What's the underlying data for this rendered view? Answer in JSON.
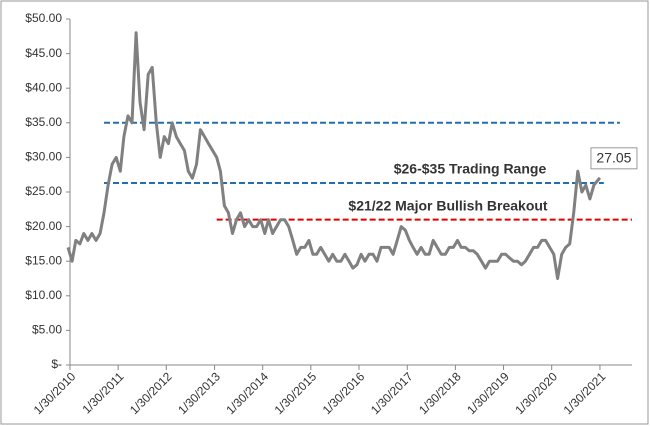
{
  "chart_data": {
    "type": "line",
    "x": [
      "2010-01-15",
      "2010-02-15",
      "2010-03-15",
      "2010-04-15",
      "2010-05-15",
      "2010-06-15",
      "2010-07-15",
      "2010-08-15",
      "2010-09-15",
      "2010-10-15",
      "2010-11-15",
      "2010-12-15",
      "2011-01-15",
      "2011-02-15",
      "2011-03-15",
      "2011-04-15",
      "2011-05-15",
      "2011-06-15",
      "2011-07-15",
      "2011-08-15",
      "2011-09-15",
      "2011-10-15",
      "2011-11-15",
      "2011-12-15",
      "2012-01-15",
      "2012-02-15",
      "2012-03-15",
      "2012-04-15",
      "2012-05-15",
      "2012-06-15",
      "2012-07-15",
      "2012-08-15",
      "2012-09-15",
      "2012-10-15",
      "2012-11-15",
      "2012-12-15",
      "2013-01-15",
      "2013-02-15",
      "2013-03-15",
      "2013-04-15",
      "2013-05-15",
      "2013-06-15",
      "2013-07-15",
      "2013-08-15",
      "2013-09-15",
      "2013-10-15",
      "2013-11-15",
      "2013-12-15",
      "2014-01-15",
      "2014-02-15",
      "2014-03-15",
      "2014-04-15",
      "2014-05-15",
      "2014-06-15",
      "2014-07-15",
      "2014-08-15",
      "2014-09-15",
      "2014-10-15",
      "2014-11-15",
      "2014-12-15",
      "2015-01-15",
      "2015-02-15",
      "2015-03-15",
      "2015-04-15",
      "2015-05-15",
      "2015-06-15",
      "2015-07-15",
      "2015-08-15",
      "2015-09-15",
      "2015-10-15",
      "2015-11-15",
      "2015-12-15",
      "2016-01-15",
      "2016-02-15",
      "2016-03-15",
      "2016-04-15",
      "2016-05-15",
      "2016-06-15",
      "2016-07-15",
      "2016-08-15",
      "2016-09-15",
      "2016-10-15",
      "2016-11-15",
      "2016-12-15",
      "2017-01-15",
      "2017-02-15",
      "2017-03-15",
      "2017-04-15",
      "2017-05-15",
      "2017-06-15",
      "2017-07-15",
      "2017-08-15",
      "2017-09-15",
      "2017-10-15",
      "2017-11-15",
      "2017-12-15",
      "2018-01-15",
      "2018-02-15",
      "2018-03-15",
      "2018-04-15",
      "2018-05-15",
      "2018-06-15",
      "2018-07-15",
      "2018-08-15",
      "2018-09-15",
      "2018-10-15",
      "2018-11-15",
      "2018-12-15",
      "2019-01-15",
      "2019-02-15",
      "2019-03-15",
      "2019-04-15",
      "2019-05-15",
      "2019-06-15",
      "2019-07-15",
      "2019-08-15",
      "2019-09-15",
      "2019-10-15",
      "2019-11-15",
      "2019-12-15",
      "2020-01-15",
      "2020-02-15",
      "2020-03-15",
      "2020-04-15",
      "2020-05-15",
      "2020-06-15",
      "2020-07-15",
      "2020-08-15",
      "2020-09-15",
      "2020-10-15",
      "2020-11-15",
      "2020-12-15",
      "2021-01-30"
    ],
    "values": [
      17,
      15,
      18,
      17.5,
      19,
      18,
      19,
      18,
      19,
      22,
      26,
      29,
      30,
      28,
      33,
      36,
      35,
      48,
      38,
      34,
      42,
      43,
      35,
      30,
      33,
      32,
      35,
      33,
      32,
      31,
      28,
      27,
      29,
      34,
      33,
      32,
      31,
      30,
      28,
      23,
      22,
      19,
      21,
      22,
      20,
      21,
      20,
      20,
      21,
      19,
      21,
      19,
      20,
      21,
      21,
      20,
      18,
      16,
      17,
      17,
      18,
      16,
      16,
      17,
      16,
      15,
      16,
      15,
      15,
      16,
      15,
      14,
      14.5,
      16,
      15,
      16,
      16,
      15,
      17,
      17,
      17,
      16,
      18,
      20,
      19.5,
      18,
      17,
      16,
      17,
      16,
      16,
      18,
      17,
      16,
      16,
      17,
      17,
      18,
      17,
      17,
      16.5,
      16.5,
      16,
      15,
      14,
      15,
      15,
      15,
      16,
      16,
      15.5,
      15,
      15,
      14.5,
      15,
      16,
      17,
      17,
      18,
      18,
      17,
      16,
      12.5,
      16,
      17,
      17.5,
      22,
      28,
      25,
      26,
      24,
      26,
      27.05
    ],
    "color": "#808080",
    "xlim": [
      "2010-01-30",
      "2021-09-30"
    ],
    "xticks": [
      {
        "value": "2010-01-30",
        "label": "1/30/2010"
      },
      {
        "value": "2011-01-30",
        "label": "1/30/2011"
      },
      {
        "value": "2012-01-30",
        "label": "1/30/2012"
      },
      {
        "value": "2013-01-30",
        "label": "1/30/2013"
      },
      {
        "value": "2014-01-30",
        "label": "1/30/2014"
      },
      {
        "value": "2015-01-30",
        "label": "1/30/2015"
      },
      {
        "value": "2016-01-30",
        "label": "1/30/2016"
      },
      {
        "value": "2017-01-30",
        "label": "1/30/2017"
      },
      {
        "value": "2018-01-30",
        "label": "1/30/2018"
      },
      {
        "value": "2019-01-30",
        "label": "1/30/2019"
      },
      {
        "value": "2020-01-30",
        "label": "1/30/2020"
      },
      {
        "value": "2021-01-30",
        "label": "1/30/2021"
      }
    ],
    "ylim": [
      0,
      50
    ],
    "yticks": [
      {
        "value": 0,
        "label": "$-"
      },
      {
        "value": 5,
        "label": "$5.00"
      },
      {
        "value": 10,
        "label": "$10.00"
      },
      {
        "value": 15,
        "label": "$15.00"
      },
      {
        "value": 20,
        "label": "$20.00"
      },
      {
        "value": 25,
        "label": "$25.00"
      },
      {
        "value": 30,
        "label": "$30.00"
      },
      {
        "value": 35,
        "label": "$35.00"
      },
      {
        "value": 40,
        "label": "$40.00"
      },
      {
        "value": 45,
        "label": "$45.00"
      },
      {
        "value": 50,
        "label": "$50.00"
      }
    ],
    "grid": false,
    "reference_lines": [
      {
        "value": 35,
        "start": "2010-10-15",
        "end": "2021-06-30",
        "color": "#1f6fb2"
      },
      {
        "value": 26.3,
        "start": "2010-10-15",
        "end": "2021-02-28",
        "color": "#1f6fb2"
      },
      {
        "value": 21,
        "start": "2013-02-15",
        "end": "2021-09-30",
        "color": "#e00000"
      }
    ],
    "annotations": [
      {
        "text": "$26-$35  Trading Range",
        "color": "#1f6fb2"
      },
      {
        "text": "$21/22 Major Bullish Breakout",
        "color": "#e00000"
      }
    ]
  }
}
